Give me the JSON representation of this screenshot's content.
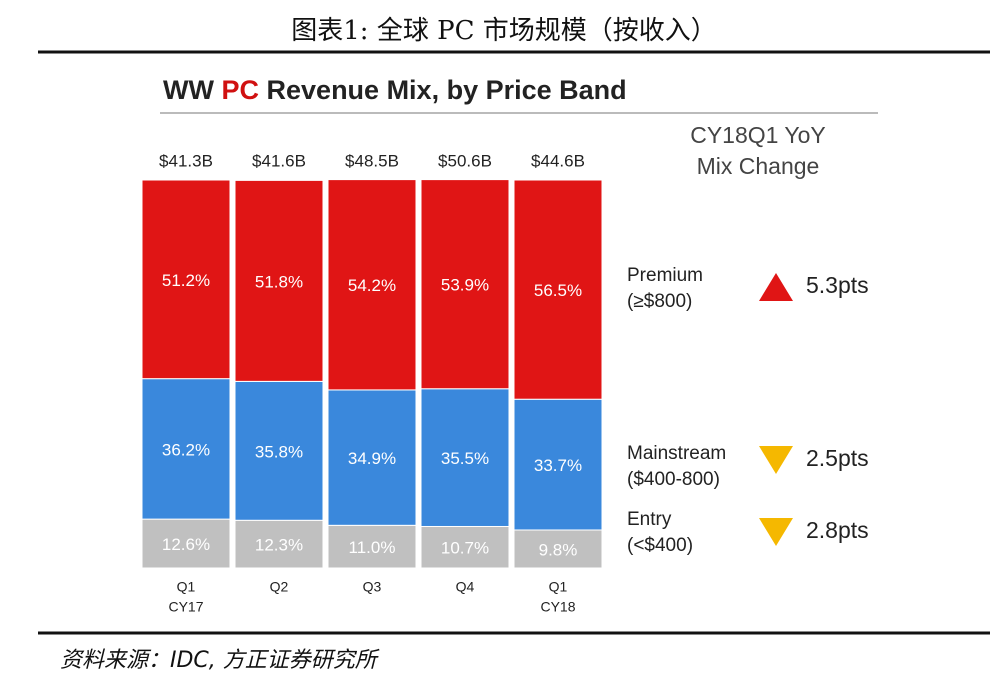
{
  "header": {
    "title": "图表1:  全球 PC 市场规模（按收入）"
  },
  "chart_data": {
    "type": "stacked-bar",
    "title": [
      "WW",
      "PC",
      "Revenue Mix, by Price Band"
    ],
    "categories": [
      "Q1",
      "Q2",
      "Q3",
      "Q4",
      "Q1"
    ],
    "years": [
      "CY17",
      null,
      null,
      null,
      "CY18"
    ],
    "ylim": [
      0,
      100
    ],
    "totals": {
      "values": [
        41.3,
        41.6,
        48.5,
        50.6,
        44.6
      ],
      "value_labels": [
        "$41.3B",
        "$41.6B",
        "$48.5B",
        "$50.6B",
        "$44.6B"
      ]
    },
    "change_title": [
      "CY18Q1 YoY",
      "Mix Change"
    ],
    "series": [
      {
        "name": "Premium",
        "range": "(≥$800)",
        "color": "#e01515",
        "values": [
          51.2,
          51.8,
          54.2,
          53.9,
          56.5
        ],
        "value_labels": [
          "51.2%",
          "51.8%",
          "54.2%",
          "53.9%",
          "56.5%"
        ],
        "change": 5.3,
        "change_label": "5.3pts",
        "change_color": "#e01515"
      },
      {
        "name": "Mainstream",
        "range": "($400-800)",
        "color": "#3a88dc",
        "values": [
          36.2,
          35.8,
          34.9,
          35.5,
          33.7
        ],
        "value_labels": [
          "36.2%",
          "35.8%",
          "34.9%",
          "35.5%",
          "33.7%"
        ],
        "change": -2.5,
        "change_label": "2.5pts",
        "change_color": "#f5b800"
      },
      {
        "name": "Entry",
        "range": "(<$400)",
        "color": "#c0c0c0",
        "values": [
          12.6,
          12.3,
          11.0,
          10.7,
          9.8
        ],
        "value_labels": [
          "12.6%",
          "12.3%",
          "11.0%",
          "10.7%",
          "9.8%"
        ],
        "change": -2.8,
        "change_label": "2.8pts",
        "change_color": "#f5b800"
      }
    ]
  },
  "footer": {
    "source": "资料来源：IDC, 方正证券研究所"
  }
}
